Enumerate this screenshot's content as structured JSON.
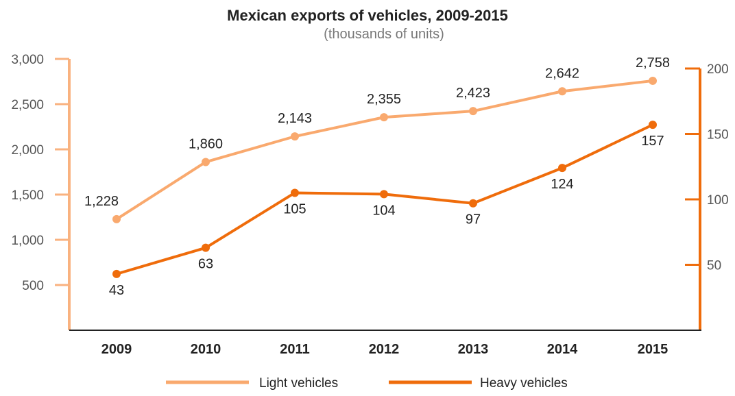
{
  "colors": {
    "light": "#F9A96E",
    "heavy": "#EF6C0B",
    "left_axis": "#F9B27F",
    "right_axis": "#EF6C0B"
  },
  "chart_data": {
    "type": "line",
    "title": "Mexican exports of vehicles, 2009-2015",
    "subtitle": "(thousands of units)",
    "x": [
      "2009",
      "2010",
      "2011",
      "2012",
      "2013",
      "2014",
      "2015"
    ],
    "y_left": {
      "ticks": [
        "3,000",
        "2,500",
        "2,000",
        "1,500",
        "1,000",
        "500"
      ],
      "ylim": [
        0,
        3000
      ]
    },
    "y_right": {
      "ticks": [
        "200",
        "150",
        "100",
        "50"
      ],
      "ylim": [
        0,
        200
      ]
    },
    "series": [
      {
        "name": "Light vehicles",
        "axis": "left",
        "values": [
          1228,
          1860,
          2143,
          2355,
          2423,
          2642,
          2758
        ],
        "labels": [
          "1,228",
          "1,860",
          "2,143",
          "2,355",
          "2,423",
          "2,642",
          "2,758"
        ]
      },
      {
        "name": "Heavy vehicles",
        "axis": "right",
        "values": [
          43,
          63,
          105,
          104,
          97,
          124,
          157
        ],
        "labels": [
          "43",
          "63",
          "105",
          "104",
          "97",
          "124",
          "157"
        ]
      }
    ],
    "legend": "bottom-center",
    "grid": false
  }
}
